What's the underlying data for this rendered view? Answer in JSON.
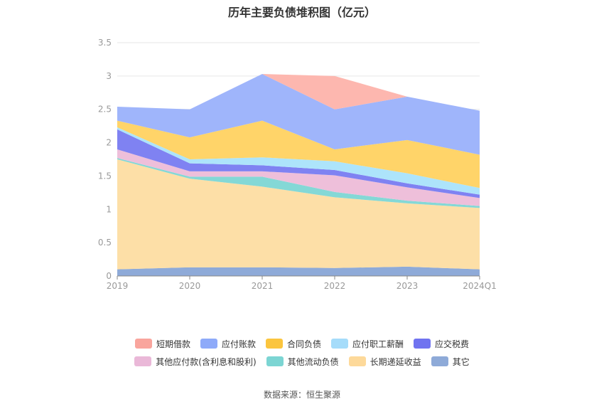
{
  "chart_data": {
    "type": "area",
    "stacked": true,
    "title": "历年主要负债堆积图（亿元）",
    "categories": [
      "2019",
      "2020",
      "2021",
      "2022",
      "2023",
      "2024Q1"
    ],
    "y_ticks": [
      "0",
      "0.5",
      "1",
      "1.5",
      "2",
      "2.5",
      "3",
      "3.5"
    ],
    "ylim": [
      0,
      3.5
    ],
    "grid": true,
    "legend_position": "bottom",
    "series": [
      {
        "name": "其它",
        "color": "#8eaad8",
        "values": [
          0.1,
          0.13,
          0.13,
          0.12,
          0.14,
          0.1
        ]
      },
      {
        "name": "长期递延收益",
        "color": "#fddfa7",
        "values": [
          1.65,
          1.33,
          1.21,
          1.06,
          0.95,
          0.92
        ]
      },
      {
        "name": "其他流动负债",
        "color": "#84d8d6",
        "values": [
          0.02,
          0.03,
          0.15,
          0.08,
          0.04,
          0.03
        ]
      },
      {
        "name": "其他应付款(含利息和股利)",
        "color": "#eebfda",
        "values": [
          0.13,
          0.08,
          0.08,
          0.25,
          0.2,
          0.12
        ]
      },
      {
        "name": "应交税费",
        "color": "#7f82f2",
        "values": [
          0.3,
          0.12,
          0.09,
          0.08,
          0.06,
          0.05
        ]
      },
      {
        "name": "应付职工薪酬",
        "color": "#ade4fb",
        "values": [
          0.03,
          0.06,
          0.12,
          0.13,
          0.15,
          0.1
        ]
      },
      {
        "name": "合同负债",
        "color": "#ffd469",
        "values": [
          0.1,
          0.33,
          0.55,
          0.18,
          0.5,
          0.5
        ]
      },
      {
        "name": "应付账款",
        "color": "#9fb5fb",
        "values": [
          0.21,
          0.42,
          0.7,
          0.6,
          0.65,
          0.66
        ]
      },
      {
        "name": "短期借款",
        "color": "#fdb7af",
        "values": [
          0,
          0,
          0,
          0.5,
          0,
          0
        ]
      }
    ]
  },
  "legend_rows": [
    [
      {
        "name": "短期借款",
        "color": "#f9a59d"
      },
      {
        "name": "应付账款",
        "color": "#8eaaf9"
      },
      {
        "name": "合同负债",
        "color": "#fbc53e"
      },
      {
        "name": "应付职工薪酬",
        "color": "#a5dcfa"
      },
      {
        "name": "应交税费",
        "color": "#7073f0"
      }
    ],
    [
      {
        "name": "其他应付款(含利息和股利)",
        "color": "#eab8d8"
      },
      {
        "name": "其他流动负债",
        "color": "#7cd5d3"
      },
      {
        "name": "长期递延收益",
        "color": "#fdd99a"
      },
      {
        "name": "其它",
        "color": "#8eaad8"
      }
    ]
  ],
  "source": "数据来源：恒生聚源"
}
